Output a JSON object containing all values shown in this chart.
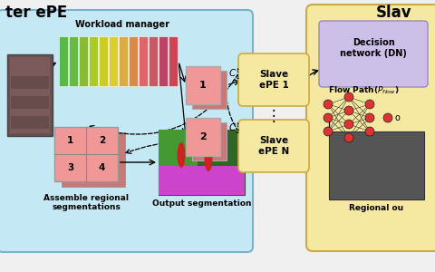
{
  "bg_color": "#f0f0f0",
  "master_box_color": "#c5e8f5",
  "slave_box_color": "#f5e8a0",
  "dn_inner_color": "#ccc0e8",
  "title_left": "ter ePE",
  "title_right": "Slav",
  "workload_label": "Workload manager",
  "assemble_label": "Assemble regional\nsegmentations",
  "output_seg_label": "Output segmentation",
  "slave1_label": "Slave\nePE 1",
  "slaveN_label": "Slave\nePE N",
  "dn_label": "Decision\nnetwork (DN)",
  "flow_path_label": "Flow Path($P_{flow}$)",
  "regional_out_label": "Regional ou",
  "bar_colors": [
    "#55bb44",
    "#66bb44",
    "#88bb33",
    "#aacc22",
    "#cccc22",
    "#ddcc33",
    "#ddaa44",
    "#dd8844",
    "#dd6666",
    "#cc5566",
    "#bb4466",
    "#cc4455"
  ],
  "panel_color": "#f09898",
  "panel_shadow": "#c87878",
  "node_color": "#dd3333",
  "dark_box_color": "#555555",
  "master_edge": "#7ab0cc",
  "slave_edge": "#ccaa44"
}
